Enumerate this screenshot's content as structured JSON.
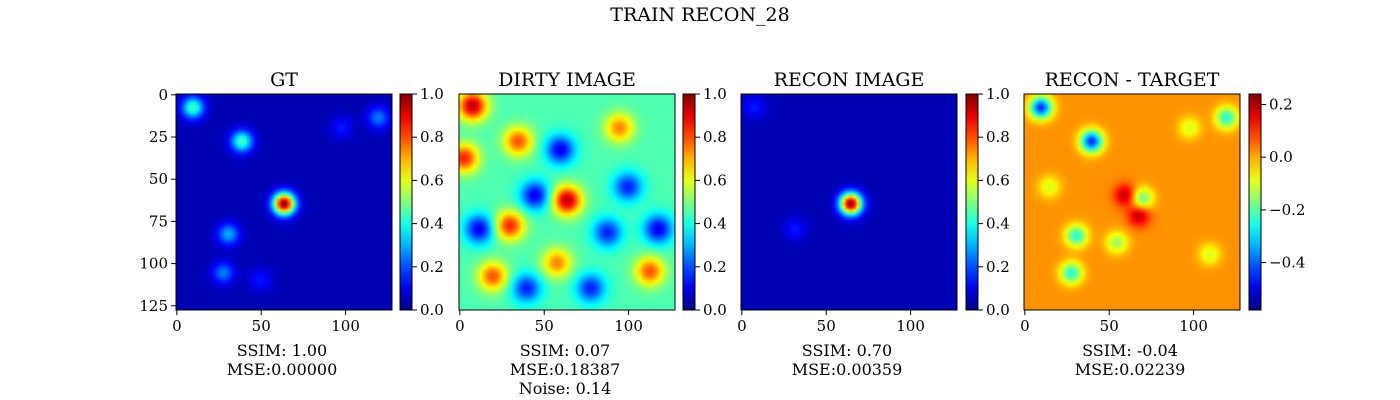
{
  "figure": {
    "suptitle": "TRAIN RECON_28"
  },
  "chart_data": [
    {
      "type": "heatmap",
      "title": "GT",
      "colormap": "jet",
      "image_size": [
        128,
        128
      ],
      "xticks": [
        "0",
        "50",
        "100"
      ],
      "yticks": [
        "0",
        "25",
        "50",
        "75",
        "100",
        "125"
      ],
      "colorbar": {
        "range": [
          0.0,
          1.0
        ],
        "ticks": [
          "0.0",
          "0.2",
          "0.4",
          "0.6",
          "0.8",
          "1.0"
        ]
      },
      "background_value": 0.05,
      "blobs": [
        {
          "x": 10,
          "y": 8,
          "value": 0.45
        },
        {
          "x": 39,
          "y": 28,
          "value": 0.45
        },
        {
          "x": 64,
          "y": 65,
          "value": 1.0
        },
        {
          "x": 31,
          "y": 83,
          "value": 0.3
        },
        {
          "x": 28,
          "y": 106,
          "value": 0.25
        },
        {
          "x": 120,
          "y": 14,
          "value": 0.25
        },
        {
          "x": 98,
          "y": 20,
          "value": 0.15
        },
        {
          "x": 50,
          "y": 110,
          "value": 0.15
        }
      ],
      "caption": [
        "SSIM: 1.00",
        "MSE:0.00000"
      ]
    },
    {
      "type": "heatmap",
      "title": "DIRTY IMAGE",
      "colormap": "jet",
      "image_size": [
        128,
        128
      ],
      "xticks": [
        "0",
        "50",
        "100"
      ],
      "colorbar": {
        "range": [
          0.0,
          1.0
        ],
        "ticks": [
          "0.0",
          "0.2",
          "0.4",
          "0.6",
          "0.8",
          "1.0"
        ]
      },
      "background_value": 0.45,
      "blobs": [
        {
          "x": 8,
          "y": 7,
          "value": 0.95
        },
        {
          "x": 64,
          "y": 63,
          "value": 0.95
        },
        {
          "x": 30,
          "y": 78,
          "value": 0.85
        },
        {
          "x": 3,
          "y": 38,
          "value": 0.85
        },
        {
          "x": 35,
          "y": 28,
          "value": 0.8
        },
        {
          "x": 95,
          "y": 20,
          "value": 0.75
        },
        {
          "x": 20,
          "y": 108,
          "value": 0.8
        },
        {
          "x": 113,
          "y": 105,
          "value": 0.8
        },
        {
          "x": 58,
          "y": 100,
          "value": 0.75
        },
        {
          "x": 45,
          "y": 60,
          "value": 0.1
        },
        {
          "x": 60,
          "y": 33,
          "value": 0.1
        },
        {
          "x": 118,
          "y": 80,
          "value": 0.1
        },
        {
          "x": 12,
          "y": 80,
          "value": 0.1
        },
        {
          "x": 88,
          "y": 82,
          "value": 0.15
        },
        {
          "x": 100,
          "y": 55,
          "value": 0.15
        },
        {
          "x": 78,
          "y": 115,
          "value": 0.15
        },
        {
          "x": 40,
          "y": 115,
          "value": 0.15
        }
      ],
      "caption": [
        "SSIM: 0.07",
        "MSE:0.18387",
        "Noise: 0.14"
      ]
    },
    {
      "type": "heatmap",
      "title": "RECON IMAGE",
      "colormap": "jet",
      "image_size": [
        128,
        128
      ],
      "xticks": [
        "0",
        "50",
        "100"
      ],
      "colorbar": {
        "range": [
          0.0,
          1.0
        ],
        "ticks": [
          "0.0",
          "0.2",
          "0.4",
          "0.6",
          "0.8",
          "1.0"
        ]
      },
      "background_value": 0.05,
      "blobs": [
        {
          "x": 65,
          "y": 65,
          "value": 1.0
        },
        {
          "x": 32,
          "y": 80,
          "value": 0.15
        },
        {
          "x": 8,
          "y": 8,
          "value": 0.15
        }
      ],
      "caption": [
        "SSIM: 0.70",
        "MSE:0.00359"
      ]
    },
    {
      "type": "heatmap",
      "title": "RECON - TARGET",
      "colormap": "jet",
      "image_size": [
        128,
        128
      ],
      "xticks": [
        "0",
        "50",
        "100"
      ],
      "colorbar": {
        "range": [
          -0.58,
          0.24
        ],
        "ticks": [
          "0.2",
          "0.0",
          "−0.2",
          "−0.4"
        ]
      },
      "background_value": 0.02,
      "blobs": [
        {
          "x": 10,
          "y": 8,
          "value": -0.45
        },
        {
          "x": 40,
          "y": 28,
          "value": -0.45
        },
        {
          "x": 60,
          "y": 60,
          "value": 0.2
        },
        {
          "x": 68,
          "y": 72,
          "value": 0.2
        },
        {
          "x": 70,
          "y": 62,
          "value": -0.2
        },
        {
          "x": 31,
          "y": 84,
          "value": -0.25
        },
        {
          "x": 28,
          "y": 106,
          "value": -0.25
        },
        {
          "x": 120,
          "y": 14,
          "value": -0.25
        },
        {
          "x": 98,
          "y": 20,
          "value": -0.1
        },
        {
          "x": 55,
          "y": 88,
          "value": -0.15
        },
        {
          "x": 15,
          "y": 55,
          "value": -0.1
        },
        {
          "x": 110,
          "y": 95,
          "value": -0.1
        }
      ],
      "caption": [
        "SSIM: -0.04",
        "MSE:0.02239"
      ]
    }
  ]
}
